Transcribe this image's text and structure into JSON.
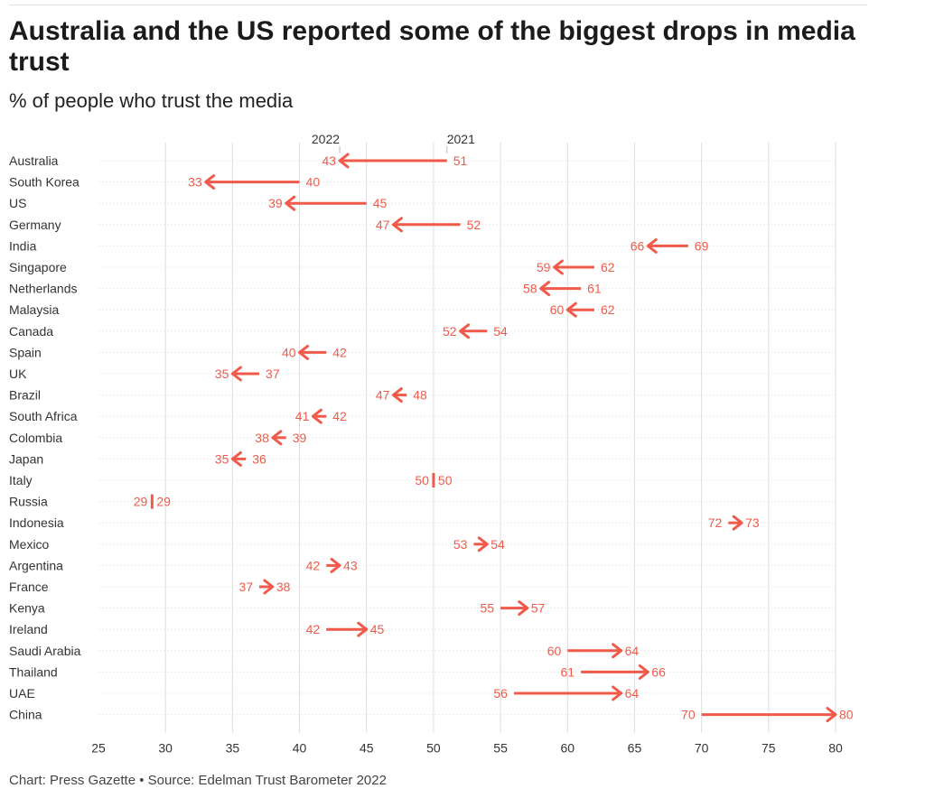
{
  "header": {
    "title": "Australia and the US reported some of the biggest drops in media trust",
    "subtitle": "% of people who trust the media"
  },
  "footer": {
    "credit": "Chart: Press Gazette • Source: Edelman Trust Barometer 2022"
  },
  "colors": {
    "accent": "#f05a4a",
    "grid": "#dddddd",
    "text": "#333333"
  },
  "chart_data": {
    "type": "arrow",
    "title": "Australia and the US reported some of the biggest drops in media trust",
    "subtitle": "% of people who trust the media",
    "xlim": [
      25,
      80
    ],
    "xticks": [
      25,
      30,
      35,
      40,
      45,
      50,
      55,
      60,
      65,
      70,
      75,
      80
    ],
    "grid": true,
    "legend": {
      "from": "2021",
      "to": "2022"
    },
    "categories": [
      "Australia",
      "South Korea",
      "US",
      "Germany",
      "India",
      "Singapore",
      "Netherlands",
      "Malaysia",
      "Canada",
      "Spain",
      "UK",
      "Brazil",
      "South Africa",
      "Colombia",
      "Japan",
      "Italy",
      "Russia",
      "Indonesia",
      "Mexico",
      "Argentina",
      "France",
      "Kenya",
      "Ireland",
      "Saudi Arabia",
      "Thailand",
      "UAE",
      "China"
    ],
    "series": [
      {
        "name": "2021",
        "values": [
          51,
          40,
          45,
          52,
          69,
          62,
          61,
          62,
          54,
          42,
          37,
          48,
          42,
          39,
          36,
          50,
          29,
          72,
          53,
          42,
          37,
          55,
          42,
          60,
          61,
          56,
          70
        ]
      },
      {
        "name": "2022",
        "values": [
          43,
          33,
          39,
          47,
          66,
          59,
          58,
          60,
          52,
          40,
          35,
          47,
          41,
          38,
          35,
          50,
          29,
          73,
          54,
          43,
          38,
          57,
          45,
          64,
          66,
          64,
          80
        ]
      }
    ]
  }
}
